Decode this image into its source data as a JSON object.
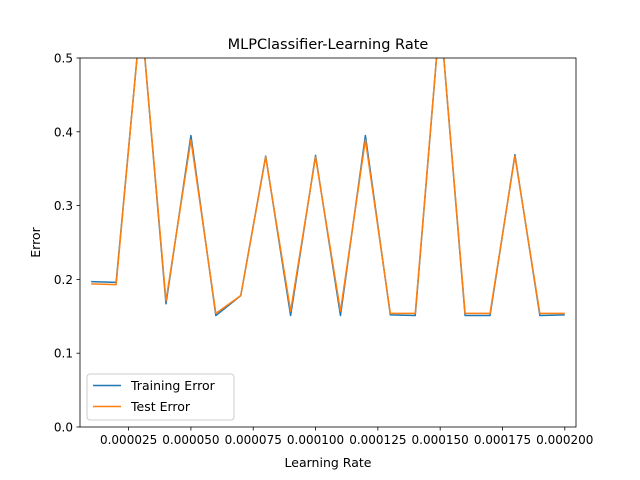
{
  "chart_data": {
    "type": "line",
    "title": "MLPClassifier-Learning Rate",
    "xlabel": "Learning Rate",
    "ylabel": "Error",
    "xlim": [
      5.5e-06,
      0.0002045
    ],
    "ylim": [
      0.0,
      0.5
    ],
    "xticks": [
      2.5e-05,
      5e-05,
      7.5e-05,
      0.0001,
      0.000125,
      0.00015,
      0.000175,
      0.0002
    ],
    "xtick_labels": [
      "0.000025",
      "0.000050",
      "0.000075",
      "0.000100",
      "0.000125",
      "0.000150",
      "0.000175",
      "0.000200"
    ],
    "yticks": [
      0.0,
      0.1,
      0.2,
      0.3,
      0.4,
      0.5
    ],
    "ytick_labels": [
      "0.0",
      "0.1",
      "0.2",
      "0.3",
      "0.4",
      "0.5"
    ],
    "grid": false,
    "legend_position": "lower-left",
    "x": [
      1e-05,
      2e-05,
      3e-05,
      4e-05,
      5e-05,
      6e-05,
      7e-05,
      8e-05,
      9e-05,
      0.0001,
      0.00011,
      0.00012,
      0.00013,
      0.00014,
      0.00015,
      0.00016,
      0.00017,
      0.00018,
      0.00019,
      0.0002
    ],
    "series": [
      {
        "name": "Training Error",
        "color": "#1f77b4",
        "values": [
          0.197,
          0.196,
          0.56,
          0.167,
          0.395,
          0.151,
          0.178,
          0.367,
          0.151,
          0.368,
          0.151,
          0.395,
          0.152,
          0.151,
          0.56,
          0.151,
          0.151,
          0.369,
          0.151,
          0.152
        ]
      },
      {
        "name": "Test Error",
        "color": "#ff7f0e",
        "values": [
          0.194,
          0.193,
          0.56,
          0.171,
          0.389,
          0.154,
          0.178,
          0.366,
          0.157,
          0.366,
          0.157,
          0.389,
          0.154,
          0.154,
          0.56,
          0.154,
          0.154,
          0.367,
          0.154,
          0.154
        ]
      }
    ]
  }
}
